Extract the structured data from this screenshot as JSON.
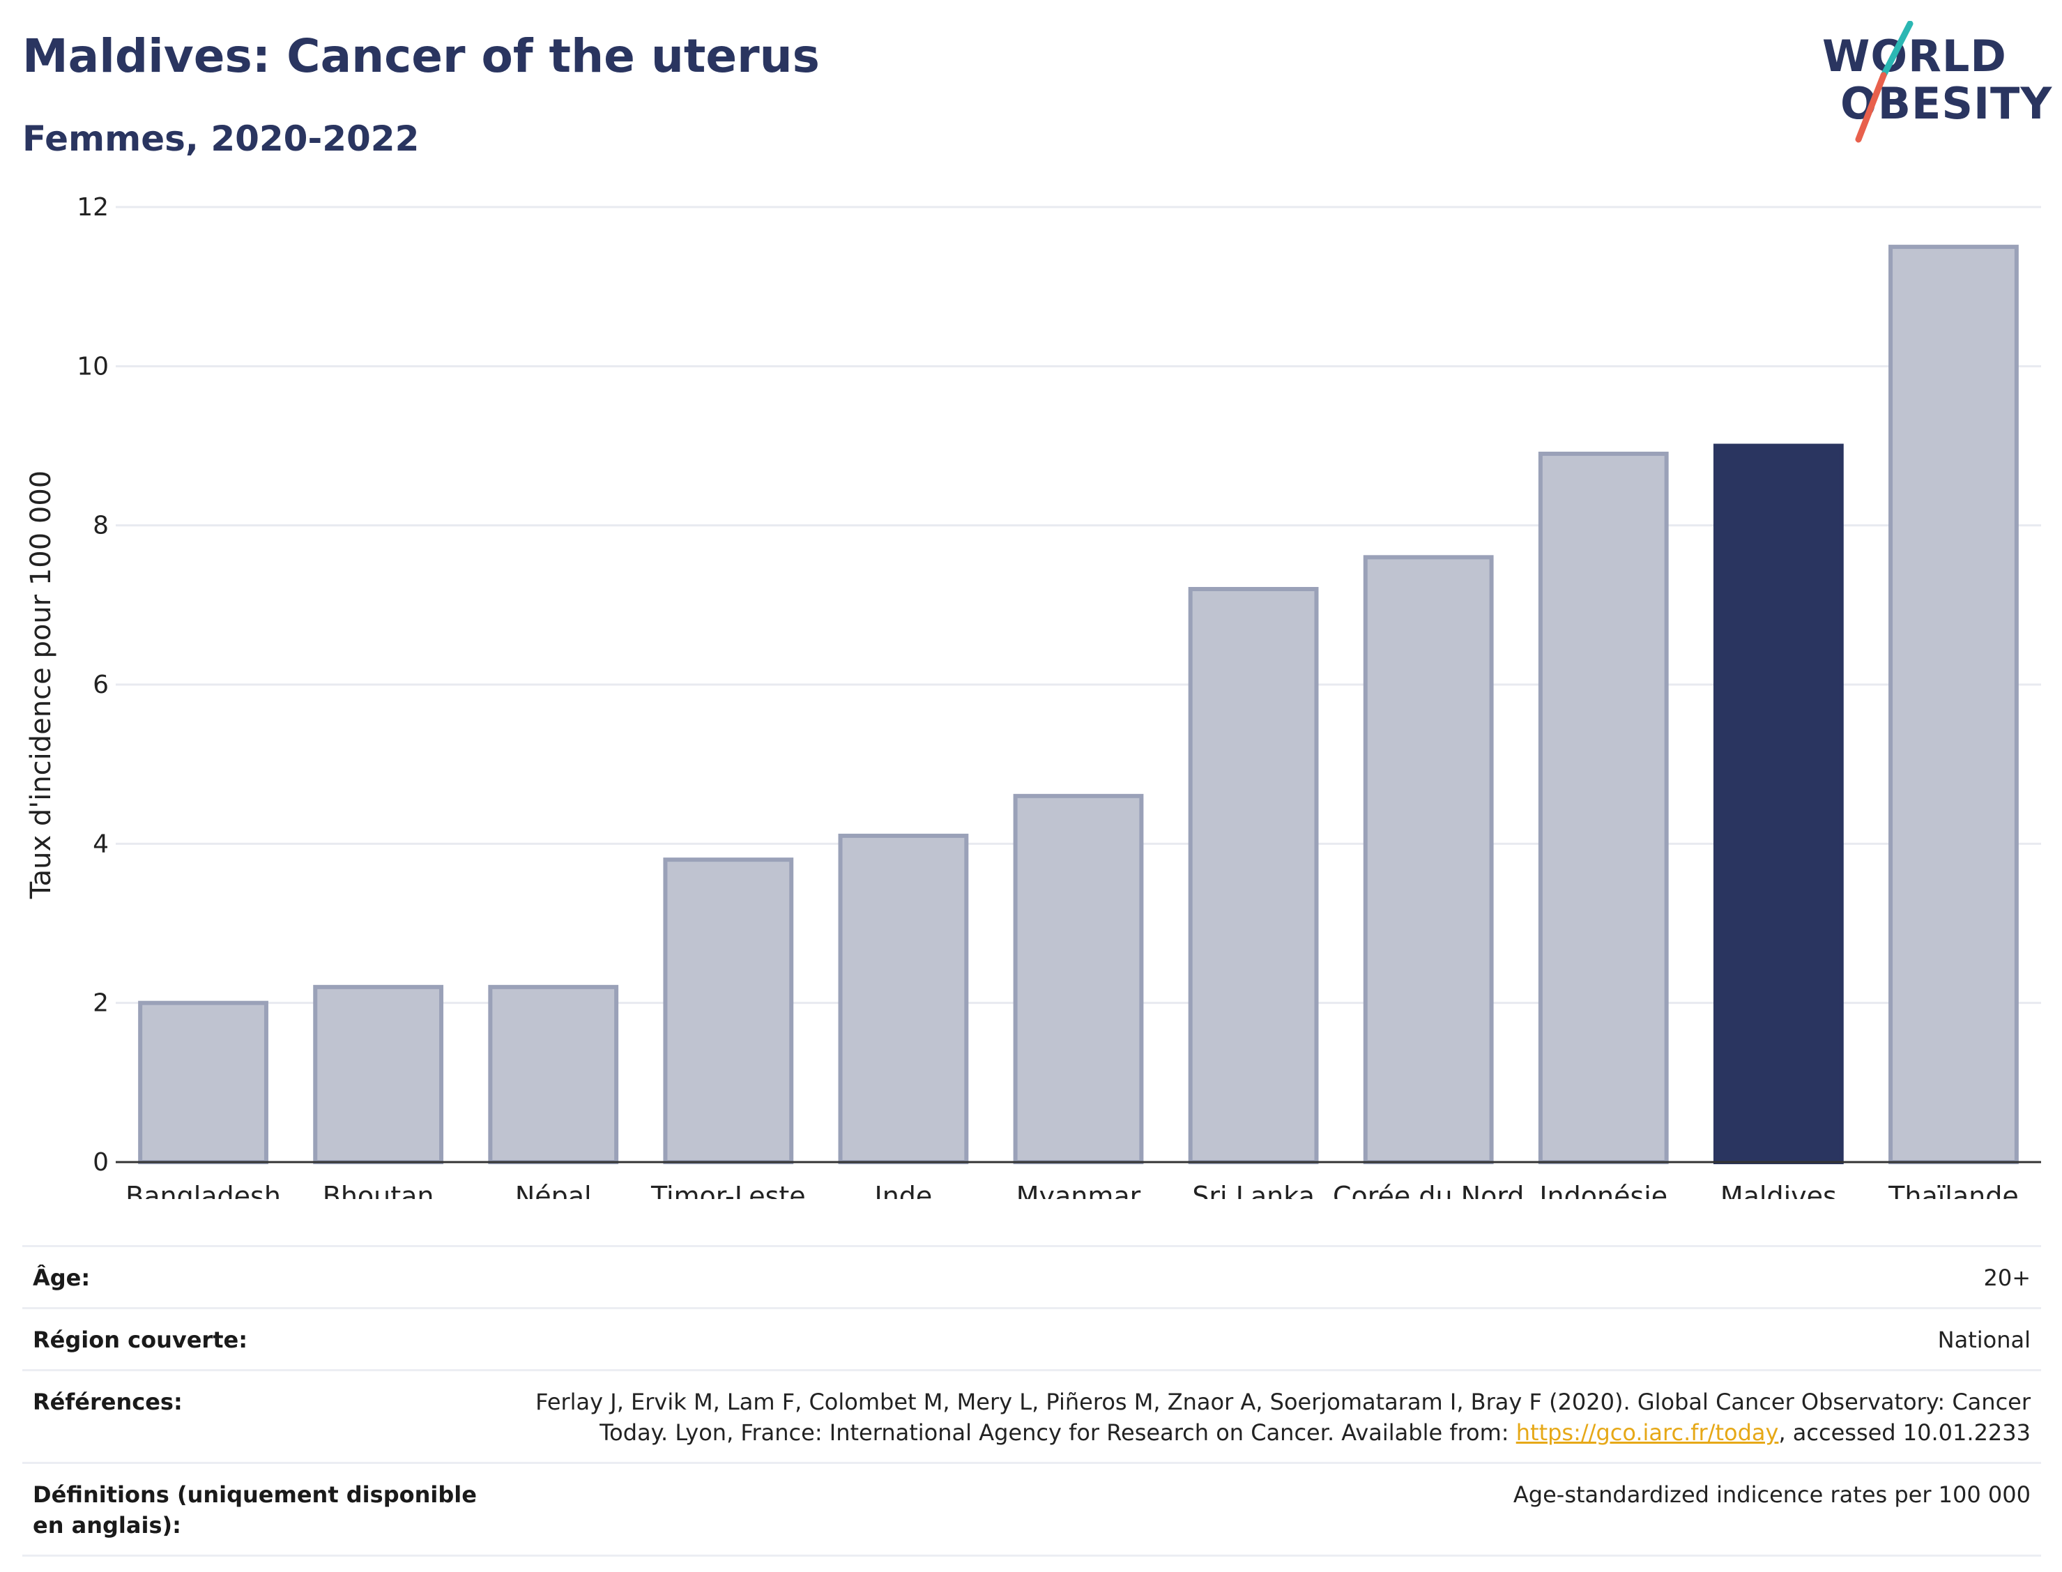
{
  "header": {
    "title": "Maldives: Cancer of the uterus",
    "subtitle": "Femmes, 2020-2022"
  },
  "logo": {
    "line1": "WORLD",
    "line2": "OBESITY",
    "accent_colors": [
      "#2bb7b3",
      "#e8604c"
    ]
  },
  "chart_data": {
    "type": "bar",
    "title": "Maldives: Cancer of the uterus",
    "subtitle": "Femmes, 2020-2022",
    "ylabel": "Taux d'incidence pour 100 000",
    "xlabel": "",
    "ylim": [
      0,
      12
    ],
    "yticks": [
      0,
      2,
      4,
      6,
      8,
      10,
      12
    ],
    "grid": true,
    "categories": [
      "Bangladesh",
      "Bhoutan",
      "Népal",
      "Timor-Leste",
      "Inde",
      "Myanmar",
      "Sri Lanka",
      "Corée du Nord",
      "Indonésie",
      "Maldives",
      "Thaïlande"
    ],
    "values": [
      2.0,
      2.2,
      2.2,
      3.8,
      4.1,
      4.6,
      7.2,
      7.6,
      8.9,
      9.0,
      11.5
    ],
    "highlight": "Maldives",
    "colors": {
      "bar": "#bfc3d0",
      "bar_edge": "#9aa1b8",
      "highlight": "#2a3560",
      "grid": "#e8eaf0",
      "axis": "#333333"
    }
  },
  "info": {
    "rows": [
      {
        "label": "Âge:",
        "value": "20+"
      },
      {
        "label": "Région couverte:",
        "value": "National"
      },
      {
        "label": "Références:",
        "value_before": "Ferlay J, Ervik M, Lam F, Colombet M, Mery L, Piñeros M, Znaor A, Soerjomataram I, Bray F (2020). Global Cancer Observatory: Cancer Today. Lyon, France: International Agency for Research on Cancer. Available from: ",
        "link": "https://gco.iarc.fr/today",
        "value_after": ", accessed 10.01.2233"
      },
      {
        "label": "Définitions (uniquement disponible en anglais):",
        "value": "Age-standardized indicence rates per 100 000"
      }
    ]
  }
}
